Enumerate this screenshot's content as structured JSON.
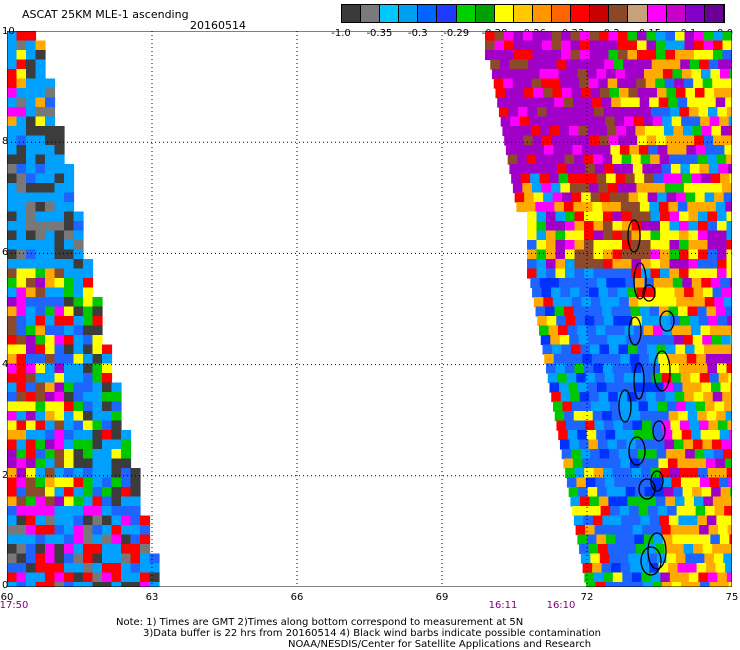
{
  "header": {
    "title": "ASCAT 25KM MLE-1 ascending",
    "date": "20160514"
  },
  "colorbar": {
    "colors": [
      "#3a3a3a",
      "#7a7a7a",
      "#00c8ff",
      "#00a0f0",
      "#0064ff",
      "#1e3cff",
      "#00d000",
      "#00a000",
      "#ffff00",
      "#ffc800",
      "#ff9600",
      "#ff6400",
      "#ff0000",
      "#c80000",
      "#8c4628",
      "#c8a07a",
      "#ff00ff",
      "#c800c8",
      "#8200c8",
      "#6a0096"
    ],
    "labels": [
      "-1.0",
      "-0.35",
      "-0.3",
      "-0.29",
      "-0.28",
      "-0.26",
      "-0.23",
      "-0.2",
      "-0.15",
      "-0.1",
      "0.0"
    ]
  },
  "map": {
    "y_ticks": [
      "10",
      "8",
      "6",
      "4",
      "2",
      "0"
    ],
    "x_ticks": [
      "60",
      "63",
      "66",
      "69",
      "72",
      "75"
    ],
    "times": [
      "17:50",
      "16:11",
      "16:10"
    ],
    "palette": {
      "darkgray": "#3c3c3c",
      "gray": "#787878",
      "sky": "#00a0ff",
      "blue": "#1e64ff",
      "deepblue": "#0032ff",
      "green": "#00c800",
      "yellow": "#ffff00",
      "orange": "#ffaa00",
      "red": "#ff0000",
      "brown": "#8c4a2a",
      "magenta": "#ff00ff",
      "purple": "#a000c8"
    }
  },
  "notes": {
    "line1": "Note: 1) Times are GMT 2)Times along bottom correspond to measurement at 5N",
    "line2": "3)Data buffer is 22 hrs from 20160514 4) Black wind barbs indicate possible contamination",
    "line3": "NOAA/NESDIS/Center for Satellite Applications and Research"
  }
}
